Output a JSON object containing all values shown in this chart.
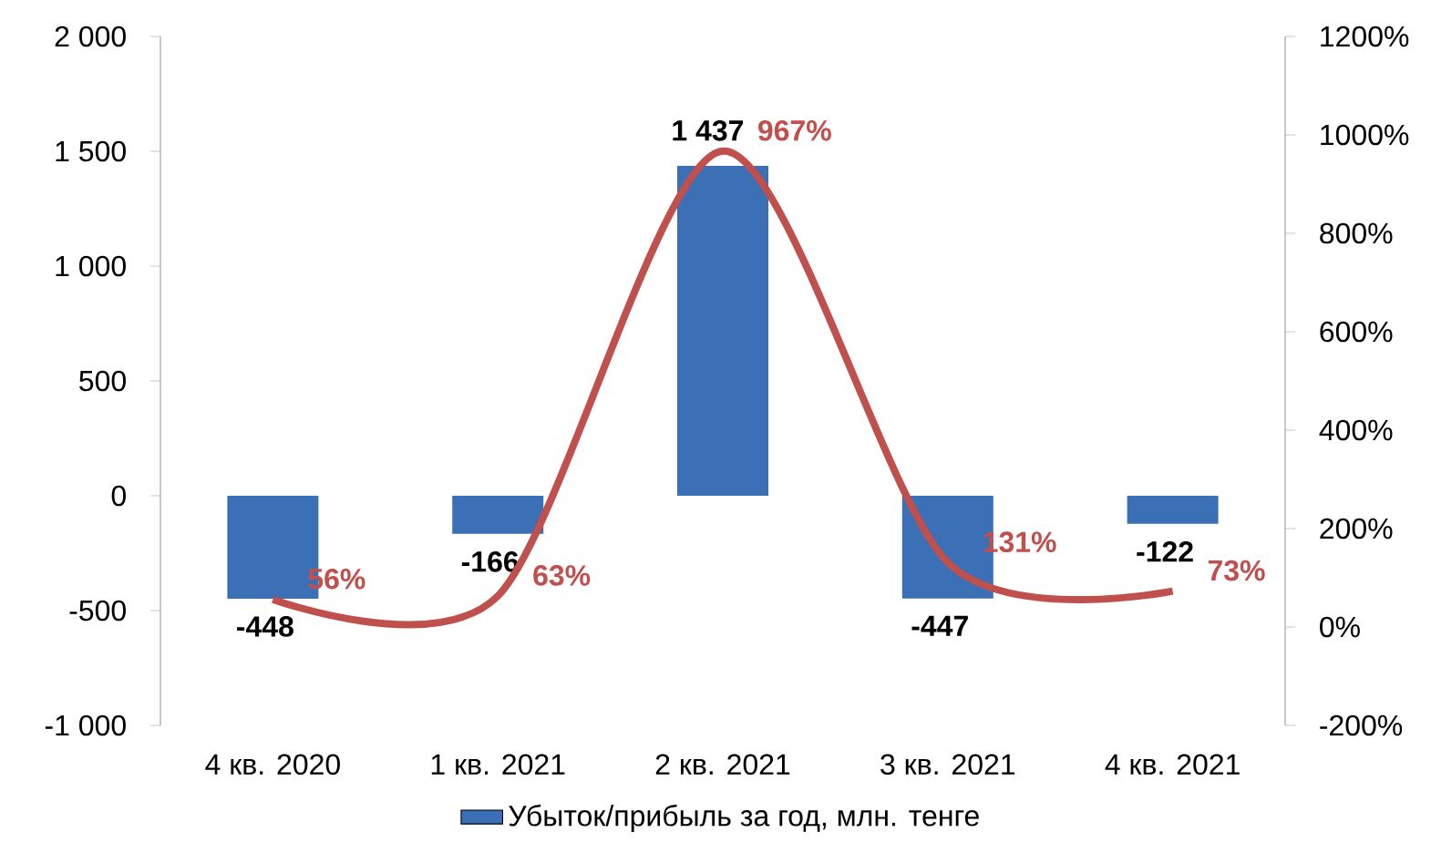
{
  "chart_data": {
    "type": "bar",
    "categories": [
      "4 кв. 2020",
      "1 кв. 2021",
      "2 кв. 2021",
      "3 кв. 2021",
      "4 кв. 2021"
    ],
    "series": [
      {
        "name": "Убыток/прибыль за год, млн. тенге",
        "type": "bar",
        "color": "#3b6fb6",
        "values": [
          -448,
          -166,
          1437,
          -447,
          -122
        ],
        "value_labels": [
          "-448",
          "-166",
          "1 437",
          "-447",
          "-122"
        ]
      },
      {
        "type": "line",
        "axis": "y2",
        "color": "#c0504d",
        "marker": "none",
        "values": [
          56,
          63,
          967,
          131,
          73
        ],
        "value_labels": [
          "56%",
          "63%",
          "967%",
          "131%",
          "73%"
        ]
      }
    ],
    "ylim": [
      -1000,
      2000
    ],
    "yticks": [
      {
        "value": -1000,
        "label": "-1 000"
      },
      -500,
      0,
      500,
      {
        "value": 1000,
        "label": "1 000"
      },
      {
        "value": 1500,
        "label": "1 500"
      },
      {
        "value": 2000,
        "label": "2 000"
      }
    ],
    "y2lim": [
      -200,
      1200
    ],
    "y2ticks": [
      {
        "value": -200,
        "label": "-200%"
      },
      {
        "value": 0,
        "label": "0%"
      },
      {
        "value": 200,
        "label": "200%"
      },
      {
        "value": 400,
        "label": "400%"
      },
      {
        "value": 600,
        "label": "600%"
      },
      {
        "value": 800,
        "label": "800%"
      },
      {
        "value": 1000,
        "label": "1000%"
      },
      {
        "value": 1200,
        "label": "1200%"
      }
    ],
    "legend": "bottom"
  }
}
